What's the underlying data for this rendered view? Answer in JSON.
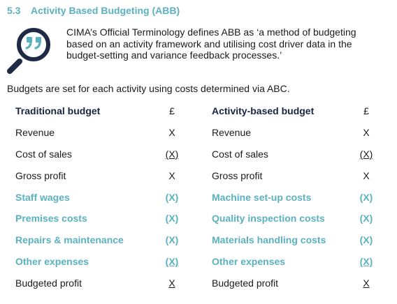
{
  "section": {
    "number": "5.3",
    "title": "Activity Based Budgeting (ABB)"
  },
  "colors": {
    "accent": "#5ab1bf",
    "icon_dark": "#1f2a44"
  },
  "icon": "quote-magnifier-icon",
  "definition": "CIMA’s Official Terminology defines ABB as ‘a method of budgeting based on an activity framework and utilising cost driver data in the budget-setting and variance feedback processes.’",
  "intro": "Budgets are set for each activity using costs determined via ABC.",
  "table": {
    "left_header": "Traditional budget",
    "left_currency": "£",
    "right_header": "Activity-based budget",
    "right_currency": "£",
    "rows": [
      {
        "left_label": "Revenue",
        "left_value": "X",
        "right_label": "Revenue",
        "right_value": "X"
      },
      {
        "left_label": "Cost of sales",
        "left_value": "(X)",
        "right_label": "Cost of sales",
        "right_value": "(X)"
      },
      {
        "left_label": "Gross profit",
        "left_value": "X",
        "right_label": "Gross profit",
        "right_value": "X"
      },
      {
        "left_label": "Staff wages",
        "left_value": "(X)",
        "right_label": "Machine set-up costs",
        "right_value": "(X)"
      },
      {
        "left_label": "Premises costs",
        "left_value": "(X)",
        "right_label": "Quality inspection costs",
        "right_value": "(X)"
      },
      {
        "left_label": "Repairs & maintenance",
        "left_value": "(X)",
        "right_label": "Materials handling costs",
        "right_value": "(X)"
      },
      {
        "left_label": "Other expenses",
        "left_value": "(X)",
        "right_label": "Other expenses",
        "right_value": "(X)"
      },
      {
        "left_label": "Budgeted profit",
        "left_value": "X",
        "right_label": "Budgeted profit",
        "right_value": "X"
      }
    ]
  }
}
